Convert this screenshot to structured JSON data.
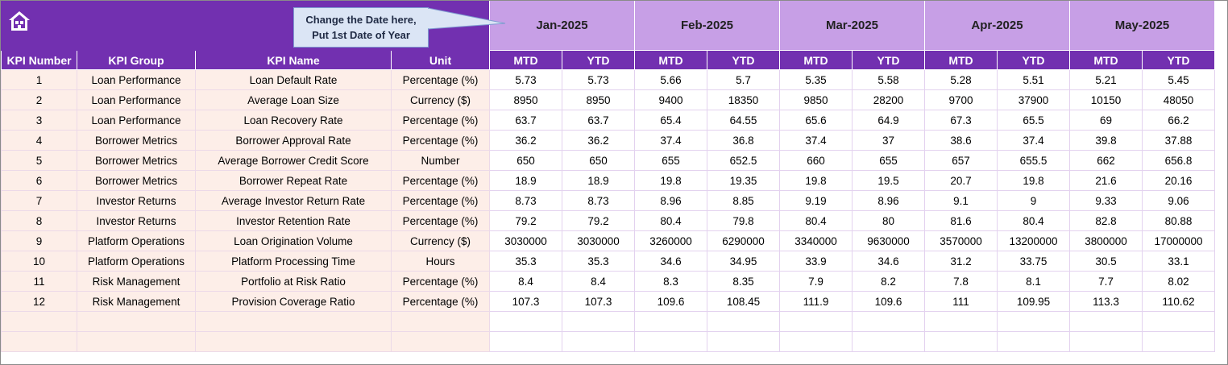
{
  "callout": {
    "line1": "Change the Date here,",
    "line2": "Put 1st Date of Year"
  },
  "months": [
    "Jan-2025",
    "Feb-2025",
    "Mar-2025",
    "Apr-2025",
    "May-2025"
  ],
  "headers": {
    "kpi_number": "KPI Number",
    "kpi_group": "KPI Group",
    "kpi_name": "KPI Name",
    "unit": "Unit",
    "mtd": "MTD",
    "ytd": "YTD"
  },
  "rows": [
    {
      "num": "1",
      "group": "Loan Performance",
      "name": "Loan Default Rate",
      "unit": "Percentage (%)",
      "vals": [
        "5.73",
        "5.73",
        "5.66",
        "5.7",
        "5.35",
        "5.58",
        "5.28",
        "5.51",
        "5.21",
        "5.45"
      ]
    },
    {
      "num": "2",
      "group": "Loan Performance",
      "name": "Average Loan Size",
      "unit": "Currency ($)",
      "vals": [
        "8950",
        "8950",
        "9400",
        "18350",
        "9850",
        "28200",
        "9700",
        "37900",
        "10150",
        "48050"
      ]
    },
    {
      "num": "3",
      "group": "Loan Performance",
      "name": "Loan Recovery Rate",
      "unit": "Percentage (%)",
      "vals": [
        "63.7",
        "63.7",
        "65.4",
        "64.55",
        "65.6",
        "64.9",
        "67.3",
        "65.5",
        "69",
        "66.2"
      ]
    },
    {
      "num": "4",
      "group": "Borrower Metrics",
      "name": "Borrower Approval Rate",
      "unit": "Percentage (%)",
      "vals": [
        "36.2",
        "36.2",
        "37.4",
        "36.8",
        "37.4",
        "37",
        "38.6",
        "37.4",
        "39.8",
        "37.88"
      ]
    },
    {
      "num": "5",
      "group": "Borrower Metrics",
      "name": "Average Borrower Credit Score",
      "unit": "Number",
      "vals": [
        "650",
        "650",
        "655",
        "652.5",
        "660",
        "655",
        "657",
        "655.5",
        "662",
        "656.8"
      ]
    },
    {
      "num": "6",
      "group": "Borrower Metrics",
      "name": "Borrower Repeat Rate",
      "unit": "Percentage (%)",
      "vals": [
        "18.9",
        "18.9",
        "19.8",
        "19.35",
        "19.8",
        "19.5",
        "20.7",
        "19.8",
        "21.6",
        "20.16"
      ]
    },
    {
      "num": "7",
      "group": "Investor Returns",
      "name": "Average Investor Return Rate",
      "unit": "Percentage (%)",
      "vals": [
        "8.73",
        "8.73",
        "8.96",
        "8.85",
        "9.19",
        "8.96",
        "9.1",
        "9",
        "9.33",
        "9.06"
      ]
    },
    {
      "num": "8",
      "group": "Investor Returns",
      "name": "Investor Retention Rate",
      "unit": "Percentage (%)",
      "vals": [
        "79.2",
        "79.2",
        "80.4",
        "79.8",
        "80.4",
        "80",
        "81.6",
        "80.4",
        "82.8",
        "80.88"
      ]
    },
    {
      "num": "9",
      "group": "Platform Operations",
      "name": "Loan Origination Volume",
      "unit": "Currency ($)",
      "vals": [
        "3030000",
        "3030000",
        "3260000",
        "6290000",
        "3340000",
        "9630000",
        "3570000",
        "13200000",
        "3800000",
        "17000000"
      ]
    },
    {
      "num": "10",
      "group": "Platform Operations",
      "name": "Platform Processing Time",
      "unit": "Hours",
      "vals": [
        "35.3",
        "35.3",
        "34.6",
        "34.95",
        "33.9",
        "34.6",
        "31.2",
        "33.75",
        "30.5",
        "33.1"
      ]
    },
    {
      "num": "11",
      "group": "Risk Management",
      "name": "Portfolio at Risk Ratio",
      "unit": "Percentage (%)",
      "vals": [
        "8.4",
        "8.4",
        "8.3",
        "8.35",
        "7.9",
        "8.2",
        "7.8",
        "8.1",
        "7.7",
        "8.02"
      ]
    },
    {
      "num": "12",
      "group": "Risk Management",
      "name": "Provision Coverage Ratio",
      "unit": "Percentage (%)",
      "vals": [
        "107.3",
        "107.3",
        "109.6",
        "108.45",
        "111.9",
        "109.6",
        "111",
        "109.95",
        "113.3",
        "110.62"
      ]
    }
  ],
  "empty_rows": 2
}
